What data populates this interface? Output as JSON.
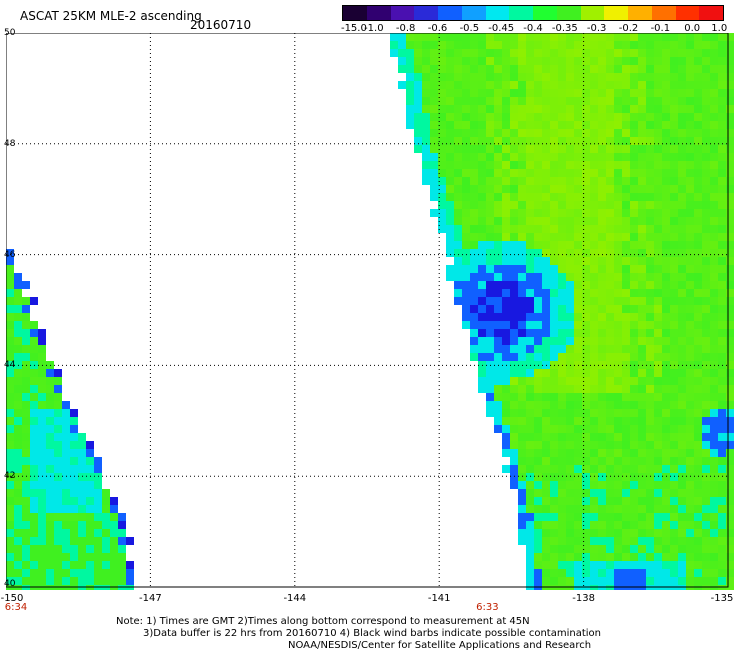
{
  "header": {
    "title": "ASCAT 25KM MLE-2 ascending",
    "date": "20160710"
  },
  "colorbar": {
    "labels": [
      "-15.0",
      "-1.0",
      "-0.8",
      "-0.6",
      "-0.5",
      "-0.45",
      "-0.4",
      "-0.35",
      "-0.3",
      "-0.2",
      "-0.1",
      "0.0",
      "1.0"
    ],
    "colors": [
      "#1a0033",
      "#300070",
      "#4a10b0",
      "#2a2ad8",
      "#1060ff",
      "#10a0ff",
      "#00e8f0",
      "#00f8a0",
      "#20ff30",
      "#40f020",
      "#a0f000",
      "#f0f000",
      "#ffb000",
      "#ff7000",
      "#ff3000",
      "#f01010"
    ]
  },
  "map": {
    "lat_labels": [
      "50",
      "48",
      "46",
      "44",
      "42",
      "40"
    ],
    "lon_labels": [
      "-150",
      "-147",
      "-144",
      "-141",
      "-138",
      "-135"
    ],
    "time_labels": [
      {
        "lon": -150,
        "text": "6:34"
      },
      {
        "lon": -140.0,
        "text": "6:33"
      }
    ],
    "lat_range": [
      40,
      50
    ],
    "lon_range": [
      -150,
      -135
    ],
    "colors": {
      "green": "#40f020",
      "lime": "#90f000",
      "cyan": "#00e8e8",
      "aqua": "#00f8a0",
      "blue": "#1060ff",
      "navy": "#1818e0",
      "purple": "#400050"
    }
  },
  "notes": {
    "line1": "Note: 1) Times are GMT 2)Times along bottom correspond to measurement at 45N",
    "line2": "3)Data buffer is 22 hrs from 20160710 4) Black wind barbs indicate possible contamination",
    "line3": "NOAA/NESDIS/Center for Satellite Applications and Research"
  }
}
